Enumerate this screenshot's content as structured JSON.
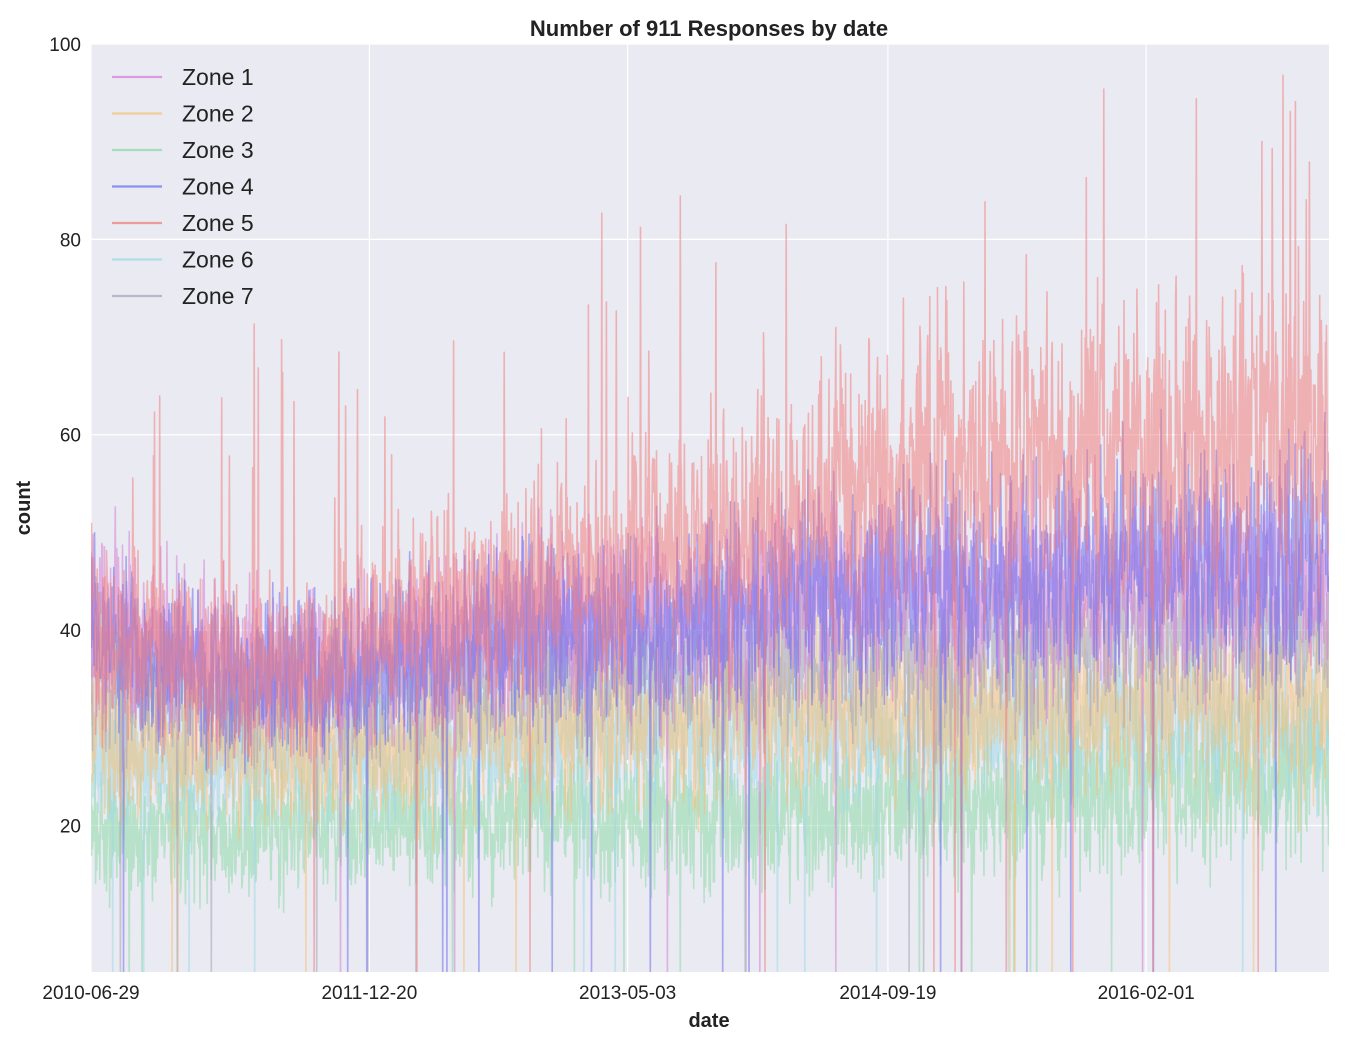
{
  "chart_data": {
    "type": "line",
    "title": "Number of 911 Responses by date",
    "xlabel": "date",
    "ylabel": "count",
    "x_range": [
      "2010-06-29",
      "2017-01-20"
    ],
    "ylim": [
      5,
      100
    ],
    "x_ticks": [
      "2010-06-29",
      "2011-12-20",
      "2013-05-03",
      "2014-09-19",
      "2016-02-01"
    ],
    "y_ticks": [
      20,
      40,
      60,
      80,
      100
    ],
    "grid": true,
    "legend_position": "top-left",
    "background": "#eaeaf2",
    "series": [
      {
        "name": "Zone 1",
        "color": "#d580d5",
        "keyframes": [
          [
            "2010-06-29",
            42
          ],
          [
            "2011-01-01",
            37
          ],
          [
            "2011-07-01",
            36
          ],
          [
            "2012-01-01",
            37
          ],
          [
            "2012-07-01",
            39
          ],
          [
            "2013-01-01",
            41
          ],
          [
            "2013-07-01",
            41
          ],
          [
            "2014-01-01",
            42
          ],
          [
            "2014-07-01",
            43
          ],
          [
            "2015-01-01",
            43
          ],
          [
            "2015-07-01",
            44
          ],
          [
            "2016-01-01",
            44
          ],
          [
            "2016-07-01",
            45
          ],
          [
            "2017-01-20",
            45
          ]
        ]
      },
      {
        "name": "Zone 2",
        "color": "#f5c17a",
        "keyframes": [
          [
            "2010-06-29",
            30
          ],
          [
            "2011-01-01",
            28
          ],
          [
            "2012-01-01",
            28
          ],
          [
            "2013-01-01",
            31
          ],
          [
            "2014-01-01",
            32
          ],
          [
            "2015-01-01",
            32
          ],
          [
            "2015-12-01",
            33
          ],
          [
            "2016-07-01",
            33
          ],
          [
            "2017-01-20",
            33
          ]
        ]
      },
      {
        "name": "Zone 3",
        "color": "#8cd9a8",
        "keyframes": [
          [
            "2010-06-29",
            20
          ],
          [
            "2011-01-01",
            19
          ],
          [
            "2012-01-01",
            20
          ],
          [
            "2013-01-01",
            21
          ],
          [
            "2014-01-01",
            21
          ],
          [
            "2015-01-01",
            22
          ],
          [
            "2016-01-01",
            24
          ],
          [
            "2016-07-01",
            25
          ],
          [
            "2017-01-20",
            25
          ]
        ]
      },
      {
        "name": "Zone 4",
        "color": "#7070ee",
        "keyframes": [
          [
            "2010-06-29",
            40
          ],
          [
            "2011-01-01",
            36
          ],
          [
            "2011-07-01",
            35
          ],
          [
            "2012-01-01",
            36
          ],
          [
            "2012-07-01",
            38
          ],
          [
            "2013-01-01",
            40
          ],
          [
            "2013-07-01",
            41
          ],
          [
            "2014-01-01",
            42
          ],
          [
            "2014-07-01",
            44
          ],
          [
            "2015-01-01",
            45
          ],
          [
            "2015-07-01",
            46
          ],
          [
            "2016-01-01",
            47
          ],
          [
            "2016-07-01",
            47
          ],
          [
            "2017-01-20",
            48
          ]
        ]
      },
      {
        "name": "Zone 5",
        "color": "#f08080",
        "keyframes": [
          [
            "2010-06-29",
            40
          ],
          [
            "2011-01-01",
            37
          ],
          [
            "2011-07-01",
            36
          ],
          [
            "2012-01-01",
            39
          ],
          [
            "2012-07-01",
            43
          ],
          [
            "2013-01-01",
            46
          ],
          [
            "2013-07-01",
            48
          ],
          [
            "2014-01-01",
            50
          ],
          [
            "2014-07-01",
            55
          ],
          [
            "2015-01-01",
            57
          ],
          [
            "2015-07-01",
            58
          ],
          [
            "2016-01-01",
            59
          ],
          [
            "2016-07-01",
            60
          ],
          [
            "2017-01-20",
            61
          ]
        ]
      },
      {
        "name": "Zone 6",
        "color": "#9ed8e8",
        "keyframes": [
          [
            "2010-06-29",
            28
          ],
          [
            "2011-01-01",
            26
          ],
          [
            "2012-01-01",
            27
          ],
          [
            "2013-01-01",
            29
          ],
          [
            "2014-01-01",
            30
          ],
          [
            "2015-01-01",
            30
          ],
          [
            "2016-01-01",
            31
          ],
          [
            "2017-01-20",
            31
          ]
        ]
      },
      {
        "name": "Zone 7",
        "color": "#a6a6b8",
        "keyframes": [
          [
            "2010-06-29",
            36
          ],
          [
            "2011-01-01",
            33
          ],
          [
            "2012-01-01",
            34
          ],
          [
            "2013-01-01",
            36
          ],
          [
            "2014-01-01",
            37
          ],
          [
            "2015-01-01",
            38
          ],
          [
            "2016-01-01",
            40
          ],
          [
            "2017-01-20",
            41
          ]
        ]
      }
    ]
  }
}
